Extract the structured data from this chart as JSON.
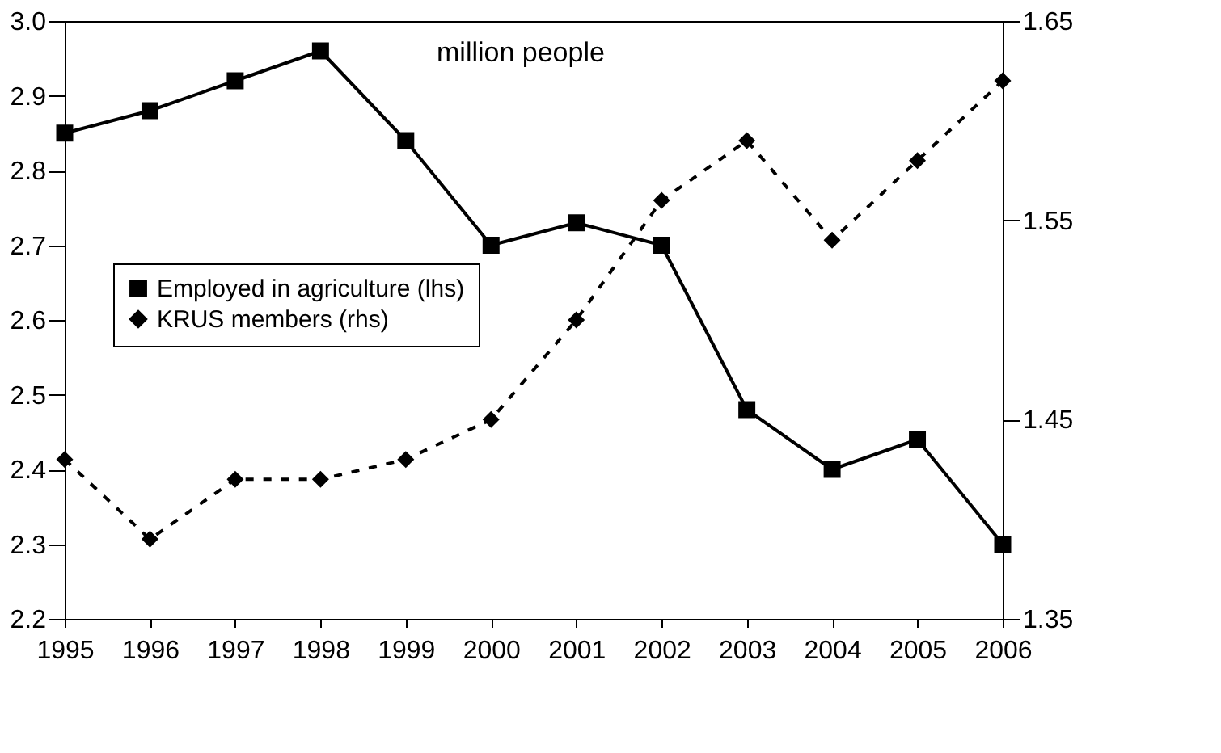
{
  "chart_data": {
    "type": "line",
    "annotations": [
      {
        "text": "million people"
      }
    ],
    "categories": [
      "1995",
      "1996",
      "1997",
      "1998",
      "1999",
      "2000",
      "2001",
      "2002",
      "2003",
      "2004",
      "2005",
      "2006"
    ],
    "series": [
      {
        "name": "Employed in agriculture (lhs)",
        "color": "#000000",
        "marker": "square",
        "line_style": "solid",
        "values": [
          2.85,
          2.88,
          2.92,
          2.96,
          2.84,
          2.7,
          2.73,
          2.7,
          2.48,
          2.4,
          2.44,
          2.3
        ]
      },
      {
        "name": "KRUS members (rhs)",
        "color": "#000000",
        "marker": "diamond",
        "line_style": "dashed",
        "axis": "y2",
        "values": [
          1.43,
          1.39,
          1.42,
          1.42,
          1.43,
          1.45,
          1.5,
          1.56,
          1.59,
          1.54,
          1.58,
          1.62
        ]
      }
    ],
    "ylim": [
      2.2,
      3.0
    ],
    "yticks": [
      2.2,
      2.3,
      2.4,
      2.5,
      2.6,
      2.7,
      2.8,
      2.9,
      {
        "value": 3.0,
        "label": "3.0"
      }
    ],
    "y2lim": [
      1.35,
      1.65
    ],
    "y2ticks": [
      1.35,
      1.45,
      1.55,
      1.65
    ],
    "grid": false,
    "legend": "left"
  }
}
